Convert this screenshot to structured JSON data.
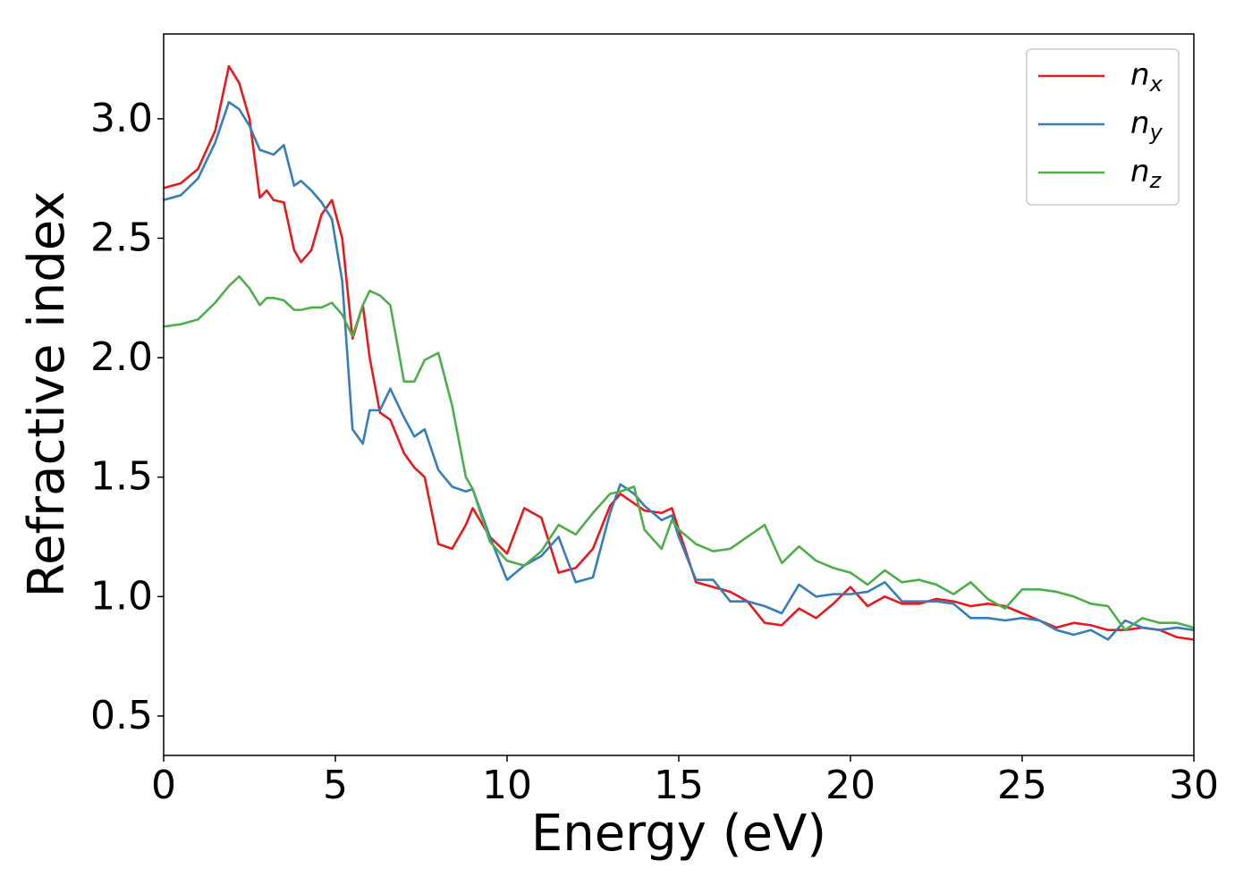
{
  "chart_data": {
    "type": "line",
    "xlabel": "Energy (eV)",
    "ylabel": "Refractive index",
    "x": [
      0,
      0.5,
      1,
      1.5,
      1.9,
      2.2,
      2.5,
      2.8,
      3,
      3.2,
      3.5,
      3.8,
      4,
      4.3,
      4.6,
      4.9,
      5.2,
      5.5,
      5.8,
      6,
      6.3,
      6.6,
      7,
      7.3,
      7.6,
      8,
      8.4,
      8.8,
      9,
      9.5,
      10,
      10.5,
      11,
      11.5,
      12,
      12.5,
      13,
      13.3,
      13.7,
      14,
      14.5,
      14.8,
      15,
      15.5,
      16,
      16.5,
      17,
      17.5,
      18,
      18.5,
      19,
      19.5,
      20,
      20.5,
      21,
      21.5,
      22,
      22.5,
      23,
      23.5,
      24,
      24.5,
      25,
      25.5,
      26,
      26.5,
      27,
      27.5,
      28,
      28.5,
      29,
      29.5,
      30
    ],
    "series": [
      {
        "name": "nx",
        "color": "#e41a1c",
        "values": [
          2.71,
          2.73,
          2.79,
          2.95,
          3.22,
          3.15,
          3.0,
          2.67,
          2.7,
          2.66,
          2.65,
          2.45,
          2.4,
          2.45,
          2.6,
          2.66,
          2.5,
          2.08,
          2.22,
          2.0,
          1.77,
          1.74,
          1.6,
          1.54,
          1.5,
          1.22,
          1.2,
          1.3,
          1.37,
          1.25,
          1.18,
          1.37,
          1.33,
          1.1,
          1.12,
          1.2,
          1.38,
          1.43,
          1.39,
          1.36,
          1.35,
          1.37,
          1.28,
          1.06,
          1.04,
          1.02,
          0.98,
          0.89,
          0.88,
          0.95,
          0.91,
          0.97,
          1.04,
          0.96,
          1.0,
          0.97,
          0.97,
          0.99,
          0.98,
          0.96,
          0.97,
          0.96,
          0.93,
          0.9,
          0.87,
          0.89,
          0.88,
          0.86,
          0.86,
          0.87,
          0.86,
          0.83,
          0.82
        ]
      },
      {
        "name": "ny",
        "color": "#377eb8",
        "values": [
          2.66,
          2.68,
          2.75,
          2.9,
          3.07,
          3.04,
          2.97,
          2.87,
          2.86,
          2.85,
          2.89,
          2.72,
          2.74,
          2.7,
          2.65,
          2.58,
          2.32,
          1.7,
          1.64,
          1.78,
          1.78,
          1.87,
          1.75,
          1.67,
          1.7,
          1.53,
          1.46,
          1.44,
          1.45,
          1.25,
          1.07,
          1.13,
          1.17,
          1.25,
          1.06,
          1.08,
          1.35,
          1.47,
          1.43,
          1.38,
          1.32,
          1.34,
          1.25,
          1.07,
          1.07,
          0.98,
          0.98,
          0.96,
          0.93,
          1.05,
          1.0,
          1.01,
          1.01,
          1.02,
          1.06,
          0.98,
          0.98,
          0.98,
          0.97,
          0.91,
          0.91,
          0.9,
          0.91,
          0.9,
          0.86,
          0.84,
          0.86,
          0.82,
          0.9,
          0.87,
          0.86,
          0.87,
          0.86
        ]
      },
      {
        "name": "nz",
        "color": "#4daf4a",
        "values": [
          2.13,
          2.14,
          2.16,
          2.23,
          2.3,
          2.34,
          2.29,
          2.22,
          2.25,
          2.25,
          2.24,
          2.2,
          2.2,
          2.21,
          2.21,
          2.23,
          2.18,
          2.09,
          2.22,
          2.28,
          2.26,
          2.22,
          1.9,
          1.9,
          1.99,
          2.02,
          1.8,
          1.5,
          1.45,
          1.23,
          1.15,
          1.13,
          1.19,
          1.3,
          1.26,
          1.35,
          1.43,
          1.44,
          1.46,
          1.28,
          1.2,
          1.32,
          1.28,
          1.22,
          1.19,
          1.2,
          1.25,
          1.3,
          1.14,
          1.21,
          1.15,
          1.12,
          1.1,
          1.05,
          1.11,
          1.06,
          1.07,
          1.05,
          1.01,
          1.06,
          0.99,
          0.95,
          1.03,
          1.03,
          1.02,
          1.0,
          0.97,
          0.96,
          0.86,
          0.91,
          0.89,
          0.89,
          0.87
        ]
      }
    ],
    "xlim": [
      0,
      30
    ],
    "xticks": [
      0,
      5,
      10,
      15,
      20,
      25,
      30
    ],
    "ylim": [
      0.335,
      3.355
    ],
    "yticks": [
      0.5,
      {
        "value": 1,
        "label": "1.0"
      },
      1.5,
      {
        "value": 2,
        "label": "2.0"
      },
      2.5,
      {
        "value": 3,
        "label": "3.0"
      }
    ],
    "legend": "upper right"
  }
}
